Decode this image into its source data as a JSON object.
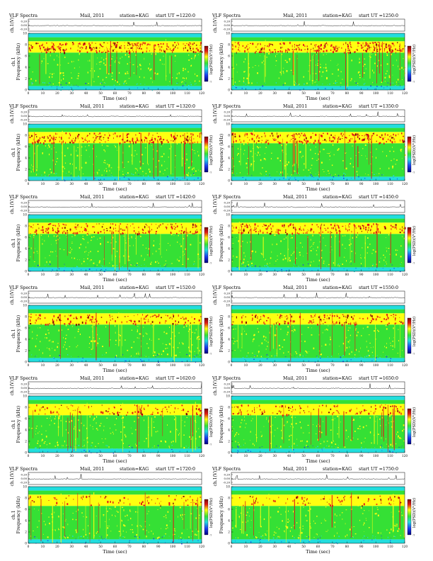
{
  "page": {
    "title_prefix": "VLF Spectra",
    "date": "Mail, 2011",
    "station": "station=KAG",
    "ut_prefix": "start UT ="
  },
  "labels": {
    "waveform_ylabel": "ch.1(V)",
    "spectro_ylabel_left": "ch.1",
    "freq_label": "Frequency (kHz)",
    "xlabel": "Time (sec)",
    "cbar_label": "log(PSD)(V²/Hz)"
  },
  "chart_data": [
    {
      "type": "heatmap",
      "panel": "p1",
      "title": "VLF Spectra",
      "date": "Mail, 2011",
      "station": "station=KAG",
      "start_ut": "1220:0",
      "x": {
        "label": "Time (sec)",
        "ticks": [
          0,
          10,
          20,
          30,
          40,
          50,
          60,
          70,
          80,
          90,
          100,
          110,
          120
        ],
        "range": [
          0,
          120
        ]
      },
      "y": {
        "label": "Frequency (kHz)",
        "ticks": [
          0,
          2,
          4,
          6,
          8,
          10
        ],
        "range": [
          0,
          10
        ]
      },
      "waveform": {
        "label": "ch.1(V)",
        "ticks": [
          "0.20",
          "0.00",
          "-0.20"
        ]
      },
      "colorbar": {
        "label": "log(PSD)(V²/Hz)",
        "range": [
          -7,
          -3
        ]
      },
      "layout": "left"
    },
    {
      "type": "heatmap",
      "panel": "p2",
      "title": "VLF Spectra",
      "date": "Mail, 2011",
      "station": "station=KAG",
      "start_ut": "1250:0",
      "x": {
        "label": "Time (sec)",
        "ticks": [
          0,
          10,
          20,
          30,
          40,
          50,
          60,
          70,
          80,
          90,
          100,
          110,
          120
        ],
        "range": [
          0,
          120
        ]
      },
      "y": {
        "label": "Frequency (kHz)",
        "ticks": [
          0,
          2,
          4,
          6,
          8,
          10
        ],
        "range": [
          0,
          10
        ]
      },
      "waveform": {
        "label": "ch.1(V)",
        "ticks": [
          "0.20",
          "0.00",
          "-0.20"
        ]
      },
      "colorbar": {
        "label": "log(PSD)(V²/Hz)",
        "range": [
          -7,
          -3
        ]
      },
      "layout": "right"
    },
    {
      "type": "heatmap",
      "panel": "p3",
      "title": "VLF Spectra",
      "date": "Mail, 2011",
      "station": "station=KAG",
      "start_ut": "1320:0",
      "x": {
        "label": "Time (sec)",
        "ticks": [
          0,
          10,
          20,
          30,
          40,
          50,
          60,
          70,
          80,
          90,
          100,
          110,
          120
        ],
        "range": [
          0,
          120
        ]
      },
      "y": {
        "label": "Frequency (kHz)",
        "ticks": [
          0,
          2,
          4,
          6,
          8,
          10
        ],
        "range": [
          0,
          10
        ]
      },
      "waveform": {
        "label": "ch.1(V)",
        "ticks": [
          "0.20",
          "0.00",
          "-0.20"
        ]
      },
      "colorbar": {
        "label": "log(PSD)(V²/Hz)",
        "range": [
          -7,
          -3
        ]
      },
      "layout": "left"
    },
    {
      "type": "heatmap",
      "panel": "p4",
      "title": "VLF Spectra",
      "date": "Mail, 2011",
      "station": "station=KAG",
      "start_ut": "1350:0",
      "x": {
        "label": "Time (sec)",
        "ticks": [
          0,
          10,
          20,
          30,
          40,
          50,
          60,
          70,
          80,
          90,
          100,
          110,
          120
        ],
        "range": [
          0,
          120
        ]
      },
      "y": {
        "label": "Frequency (kHz)",
        "ticks": [
          0,
          2,
          4,
          6,
          8,
          10
        ],
        "range": [
          0,
          10
        ]
      },
      "waveform": {
        "label": "ch.1(V)",
        "ticks": [
          "0.20",
          "0.00",
          "-0.20"
        ]
      },
      "colorbar": {
        "label": "log(PSD)(V²/Hz)",
        "range": [
          -7,
          -3
        ]
      },
      "layout": "right"
    },
    {
      "type": "heatmap",
      "panel": "p5",
      "title": "VLF Spectra",
      "date": "Mail, 2011",
      "station": "station=KAG",
      "start_ut": "1420:0",
      "x": {
        "label": "Time (sec)",
        "ticks": [
          0,
          10,
          20,
          30,
          40,
          50,
          60,
          70,
          80,
          90,
          100,
          110,
          120
        ],
        "range": [
          0,
          120
        ]
      },
      "y": {
        "label": "Frequency (kHz)",
        "ticks": [
          0,
          2,
          4,
          6,
          8,
          10
        ],
        "range": [
          0,
          10
        ]
      },
      "waveform": {
        "label": "ch.1(V)",
        "ticks": [
          "0.20",
          "0.00",
          "-0.20"
        ]
      },
      "colorbar": {
        "label": "log(PSD)(V²/Hz)",
        "range": [
          -7,
          -3
        ]
      },
      "layout": "left"
    },
    {
      "type": "heatmap",
      "panel": "p6",
      "title": "VLF Spectra",
      "date": "Mail, 2011",
      "station": "station=KAG",
      "start_ut": "1450:0",
      "x": {
        "label": "Time (sec)",
        "ticks": [
          0,
          10,
          20,
          30,
          40,
          50,
          60,
          70,
          80,
          90,
          100,
          110,
          120
        ],
        "range": [
          0,
          120
        ]
      },
      "y": {
        "label": "Frequency (kHz)",
        "ticks": [
          0,
          2,
          4,
          6,
          8,
          10
        ],
        "range": [
          0,
          10
        ]
      },
      "waveform": {
        "label": "ch.1(V)",
        "ticks": [
          "0.20",
          "0.00",
          "-0.20"
        ]
      },
      "colorbar": {
        "label": "log(PSD)(V²/Hz)",
        "range": [
          -7,
          -3
        ]
      },
      "layout": "right"
    },
    {
      "type": "heatmap",
      "panel": "p7",
      "title": "VLF Spectra",
      "date": "Mail, 2011",
      "station": "station=KAG",
      "start_ut": "1520:0",
      "x": {
        "label": "Time (sec)",
        "ticks": [
          0,
          10,
          20,
          30,
          40,
          50,
          60,
          70,
          80,
          90,
          100,
          110,
          120
        ],
        "range": [
          0,
          120
        ]
      },
      "y": {
        "label": "Frequency (kHz)",
        "ticks": [
          0,
          2,
          4,
          6,
          8,
          10
        ],
        "range": [
          0,
          10
        ]
      },
      "waveform": {
        "label": "ch.1(V)",
        "ticks": [
          "0.20",
          "0.00",
          "-0.20"
        ]
      },
      "colorbar": {
        "label": "log(PSD)(V²/Hz)",
        "range": [
          -7,
          -3
        ]
      },
      "layout": "left"
    },
    {
      "type": "heatmap",
      "panel": "p8",
      "title": "VLF Spectra",
      "date": "Mail, 2011",
      "station": "station=KAG",
      "start_ut": "1550:0",
      "x": {
        "label": "Time (sec)",
        "ticks": [
          0,
          10,
          20,
          30,
          40,
          50,
          60,
          70,
          80,
          90,
          100,
          110,
          120
        ],
        "range": [
          0,
          120
        ]
      },
      "y": {
        "label": "Frequency (kHz)",
        "ticks": [
          0,
          2,
          4,
          6,
          8,
          10
        ],
        "range": [
          0,
          10
        ]
      },
      "waveform": {
        "label": "ch.1(V)",
        "ticks": [
          "0.20",
          "0.00",
          "-0.20"
        ]
      },
      "colorbar": {
        "label": "log(PSD)(V²/Hz)",
        "range": [
          -7,
          -3
        ]
      },
      "layout": "right"
    },
    {
      "type": "heatmap",
      "panel": "p9",
      "title": "VLF Spectra",
      "date": "Mail, 2011",
      "station": "station=KAG",
      "start_ut": "1620:0",
      "x": {
        "label": "Time (sec)",
        "ticks": [
          0,
          10,
          20,
          30,
          40,
          50,
          60,
          70,
          80,
          90,
          100,
          110,
          120
        ],
        "range": [
          0,
          120
        ]
      },
      "y": {
        "label": "Frequency (kHz)",
        "ticks": [
          0,
          2,
          4,
          6,
          8,
          10
        ],
        "range": [
          0,
          10
        ]
      },
      "waveform": {
        "label": "ch.1(V)",
        "ticks": [
          "0.20",
          "0.00",
          "-0.20"
        ]
      },
      "colorbar": {
        "label": "log(PSD)(V²/Hz)",
        "range": [
          -7,
          -3
        ]
      },
      "layout": "left"
    },
    {
      "type": "heatmap",
      "panel": "p10",
      "title": "VLF Spectra",
      "date": "Mail, 2011",
      "station": "station=KAG",
      "start_ut": "1650:0",
      "x": {
        "label": "Time (sec)",
        "ticks": [
          0,
          10,
          20,
          30,
          40,
          50,
          60,
          70,
          80,
          90,
          100,
          110,
          120
        ],
        "range": [
          0,
          120
        ]
      },
      "y": {
        "label": "Frequency (kHz)",
        "ticks": [
          0,
          2,
          4,
          6,
          8,
          10
        ],
        "range": [
          0,
          10
        ]
      },
      "waveform": {
        "label": "ch.1(V)",
        "ticks": [
          "0.20",
          "0.00",
          "-0.20"
        ]
      },
      "colorbar": {
        "label": "log(PSD)(V²/Hz)",
        "range": [
          -7,
          -3
        ]
      },
      "layout": "right"
    },
    {
      "type": "heatmap",
      "panel": "p11",
      "title": "VLF Spectra",
      "date": "Mail, 2011",
      "station": "station=KAG",
      "start_ut": "1720:0",
      "x": {
        "label": "Time (sec)",
        "ticks": [
          0,
          10,
          20,
          30,
          40,
          50,
          60,
          70,
          80,
          90,
          100,
          110,
          120
        ],
        "range": [
          0,
          120
        ]
      },
      "y": {
        "label": "Frequency (kHz)",
        "ticks": [
          0,
          2,
          4,
          6,
          8,
          10
        ],
        "range": [
          0,
          10
        ]
      },
      "waveform": {
        "label": "ch.1(V)",
        "ticks": [
          "0.20",
          "0.00",
          "-0.20"
        ]
      },
      "colorbar": {
        "label": "log(PSD)(V²/Hz)",
        "range": [
          -7,
          -3
        ]
      },
      "layout": "left"
    },
    {
      "type": "heatmap",
      "panel": "p12",
      "title": "VLF Spectra",
      "date": "Mail, 2011",
      "station": "station=KAG",
      "start_ut": "1750:0",
      "x": {
        "label": "Time (sec)",
        "ticks": [
          0,
          10,
          20,
          30,
          40,
          50,
          60,
          70,
          80,
          90,
          100,
          110,
          120
        ],
        "range": [
          0,
          120
        ]
      },
      "y": {
        "label": "Frequency (kHz)",
        "ticks": [
          0,
          2,
          4,
          6,
          8,
          10
        ],
        "range": [
          0,
          10
        ]
      },
      "waveform": {
        "label": "ch.1(V)",
        "ticks": [
          "0.20",
          "0.00",
          "-0.20"
        ]
      },
      "colorbar": {
        "label": "log(PSD)(V²/Hz)",
        "range": [
          -7,
          -3
        ]
      },
      "layout": "right"
    }
  ],
  "colors": {
    "dark_red": "#7a0a0a",
    "red": "#e01818",
    "yellow": "#ffff10",
    "green": "#35e035",
    "cyan": "#22dddd",
    "blue": "#1b3cf0",
    "navy": "#000080"
  }
}
